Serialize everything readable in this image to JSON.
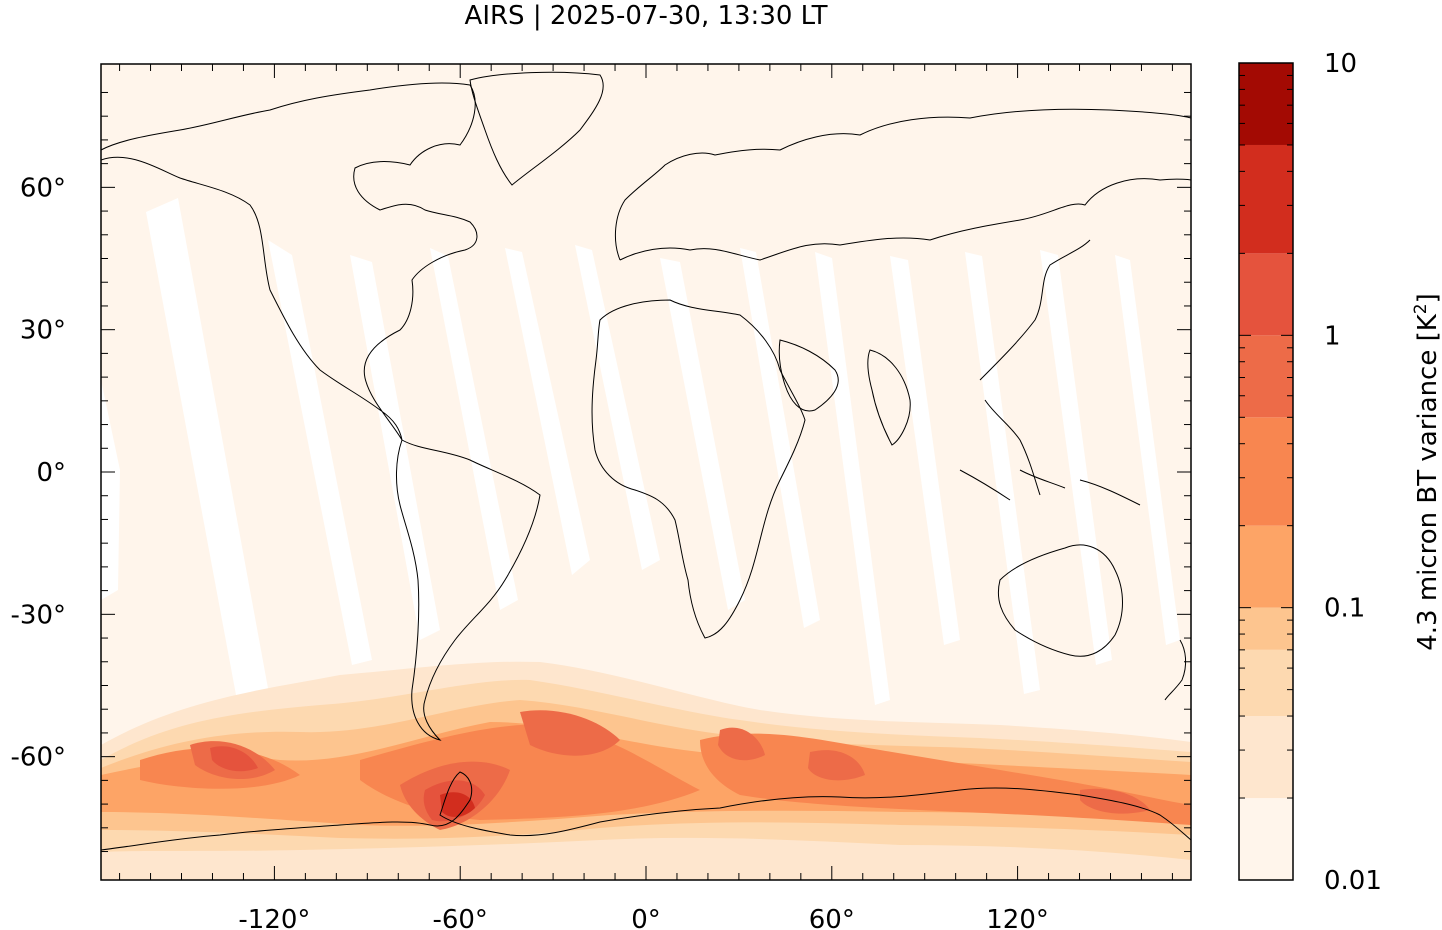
{
  "title": "AIRS | 2025-07-30, 13:30 LT",
  "map": {
    "x_ticks": [
      {
        "value": -120,
        "label": "-120°"
      },
      {
        "value": -60,
        "label": "-60°"
      },
      {
        "value": 0,
        "label": "0°"
      },
      {
        "value": 60,
        "label": "60°"
      },
      {
        "value": 120,
        "label": "120°"
      }
    ],
    "y_ticks": [
      {
        "value": 60,
        "label": "60°"
      },
      {
        "value": 30,
        "label": "30°"
      },
      {
        "value": 0,
        "label": "0°"
      },
      {
        "value": -30,
        "label": "-30°"
      },
      {
        "value": -60,
        "label": "-60°"
      }
    ],
    "lon_range": [
      -176,
      176
    ],
    "lat_range": [
      -86,
      86
    ],
    "background_value": 0.012
  },
  "colorbar": {
    "label": "4.3 micron BT variance [K",
    "label_sup": "2",
    "label_end": "]",
    "scale": "log",
    "range": [
      0.01,
      10
    ],
    "tick_labels": [
      {
        "value": 10,
        "label": "10"
      },
      {
        "value": 1,
        "label": "1"
      },
      {
        "value": 0.1,
        "label": "0.1"
      },
      {
        "value": 0.01,
        "label": "0.01"
      }
    ],
    "levels": [
      0.01,
      0.02,
      0.04,
      0.07,
      0.1,
      0.2,
      0.5,
      1,
      2,
      5,
      10
    ],
    "colors": [
      "#fff5eb",
      "#fee6ce",
      "#fdd9b0",
      "#fdc58f",
      "#fda466",
      "#f88650",
      "#ed6b48",
      "#e5533d",
      "#d22d1e",
      "#a30a03"
    ]
  }
}
